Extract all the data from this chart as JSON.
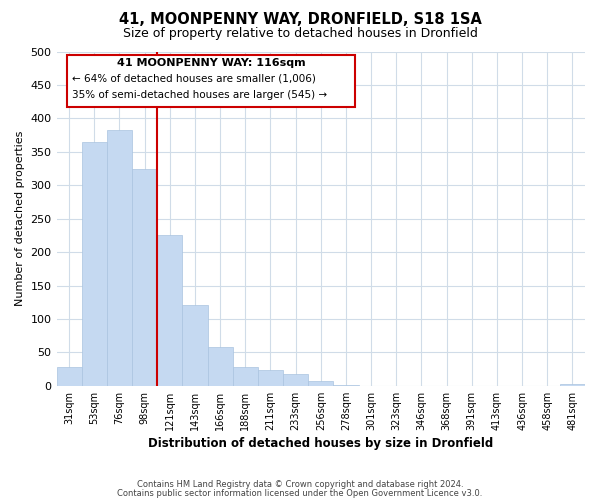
{
  "title": "41, MOONPENNY WAY, DRONFIELD, S18 1SA",
  "subtitle": "Size of property relative to detached houses in Dronfield",
  "xlabel": "Distribution of detached houses by size in Dronfield",
  "ylabel": "Number of detached properties",
  "bar_labels": [
    "31sqm",
    "53sqm",
    "76sqm",
    "98sqm",
    "121sqm",
    "143sqm",
    "166sqm",
    "188sqm",
    "211sqm",
    "233sqm",
    "256sqm",
    "278sqm",
    "301sqm",
    "323sqm",
    "346sqm",
    "368sqm",
    "391sqm",
    "413sqm",
    "436sqm",
    "458sqm",
    "481sqm"
  ],
  "bar_heights": [
    28,
    365,
    383,
    325,
    226,
    121,
    58,
    28,
    24,
    17,
    7,
    1,
    0,
    0,
    0,
    0,
    0,
    0,
    0,
    0,
    2
  ],
  "bar_color": "#c5d9f1",
  "bar_edge_color": "#aac4e0",
  "highlight_line_index": 4,
  "highlight_line_color": "#cc0000",
  "ylim": [
    0,
    500
  ],
  "yticks": [
    0,
    50,
    100,
    150,
    200,
    250,
    300,
    350,
    400,
    450,
    500
  ],
  "annotation_title": "41 MOONPENNY WAY: 116sqm",
  "annotation_line1": "← 64% of detached houses are smaller (1,006)",
  "annotation_line2": "35% of semi-detached houses are larger (545) →",
  "annotation_box_color": "#cc0000",
  "footer_line1": "Contains HM Land Registry data © Crown copyright and database right 2024.",
  "footer_line2": "Contains public sector information licensed under the Open Government Licence v3.0.",
  "background_color": "#ffffff",
  "grid_color": "#d0dce8"
}
